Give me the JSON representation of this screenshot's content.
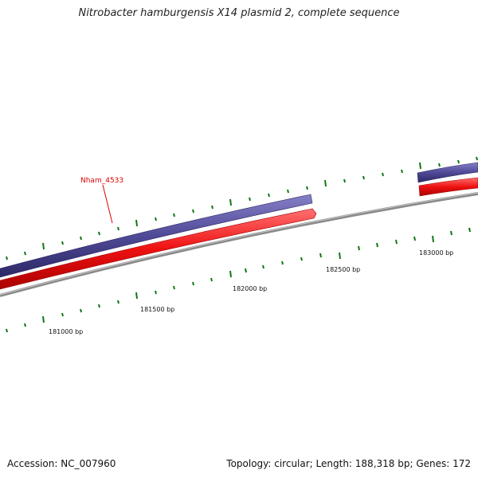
{
  "map": {
    "title": "Nitrobacter hamburgensis X14 plasmid 2, complete sequence",
    "accession": "Accession: NC_007960",
    "summary": "Topology: circular; Length: 188,318 bp; Genes: 172"
  },
  "ticks": {
    "labels": [
      "181000 bp",
      "181500 bp",
      "182000 bp",
      "182500 bp",
      "183000 bp"
    ]
  },
  "genes": {
    "label": "Nham_4533"
  },
  "colors": {
    "forward_gene": "#4f4a96",
    "reverse_gene": "#ee1111",
    "backbone": "#8a8a8a",
    "tick": "#117711",
    "gene_label": "#dd0000"
  }
}
